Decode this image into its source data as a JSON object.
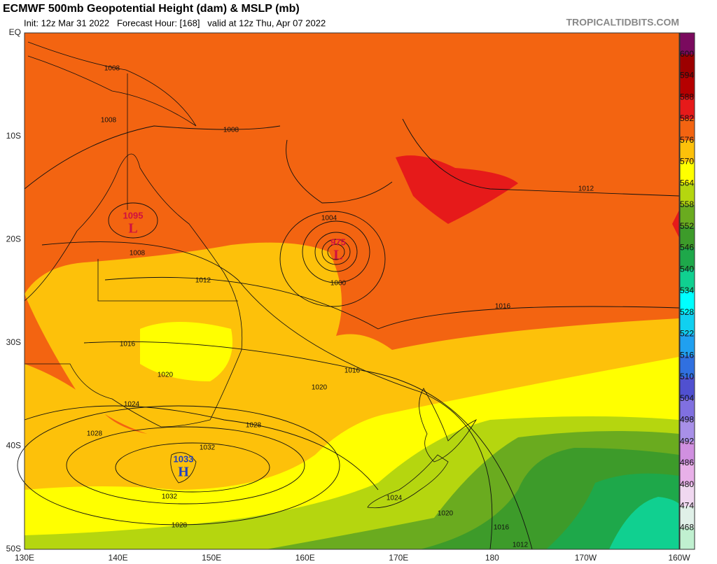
{
  "header": {
    "title": "ECMWF 500mb Geopotential Height (dam) & MSLP (mb)",
    "subtitle": "Init: 12z Mar 31 2022   Forecast Hour: [168]   valid at 12z Thu, Apr 07 2022",
    "site": "TROPICALTIDBITS.COM"
  },
  "axes": {
    "lat_labels": [
      "EQ",
      "10S",
      "20S",
      "30S",
      "40S",
      "50S"
    ],
    "lon_labels": [
      "130E",
      "140E",
      "150E",
      "160E",
      "170E",
      "180",
      "170W",
      "160W"
    ]
  },
  "colorbar": {
    "levels": [
      600,
      594,
      588,
      582,
      576,
      570,
      564,
      558,
      552,
      546,
      540,
      534,
      528,
      522,
      516,
      510,
      504,
      498,
      492,
      486,
      480,
      474,
      468
    ],
    "colors": [
      "#7a0a5e",
      "#9c0000",
      "#b50000",
      "#e61a1a",
      "#f36411",
      "#fdc10a",
      "#ffff00",
      "#b5d60f",
      "#6aab1f",
      "#3d9b2a",
      "#1ea84a",
      "#10d090",
      "#00ffff",
      "#10d0f0",
      "#20a0f0",
      "#3070e0",
      "#5050d0",
      "#8070e0",
      "#a890e8",
      "#d090e0",
      "#e8b0e8",
      "#f0d8f0",
      "#e0f0e8",
      "#c0f0d0"
    ]
  },
  "pressure_labels": [
    "1008",
    "1008",
    "1008",
    "1012",
    "1004",
    "1000",
    "1008",
    "1012",
    "1016",
    "1016",
    "1016",
    "1020",
    "1020",
    "1024",
    "1028",
    "1028",
    "1032",
    "1032",
    "1024",
    "1020",
    "1028",
    "1016",
    "1012"
  ],
  "systems": [
    {
      "value": "1095",
      "letter": "L"
    },
    {
      "value": "975",
      "letter": "L"
    },
    {
      "value": "1033",
      "letter": "H"
    }
  ]
}
